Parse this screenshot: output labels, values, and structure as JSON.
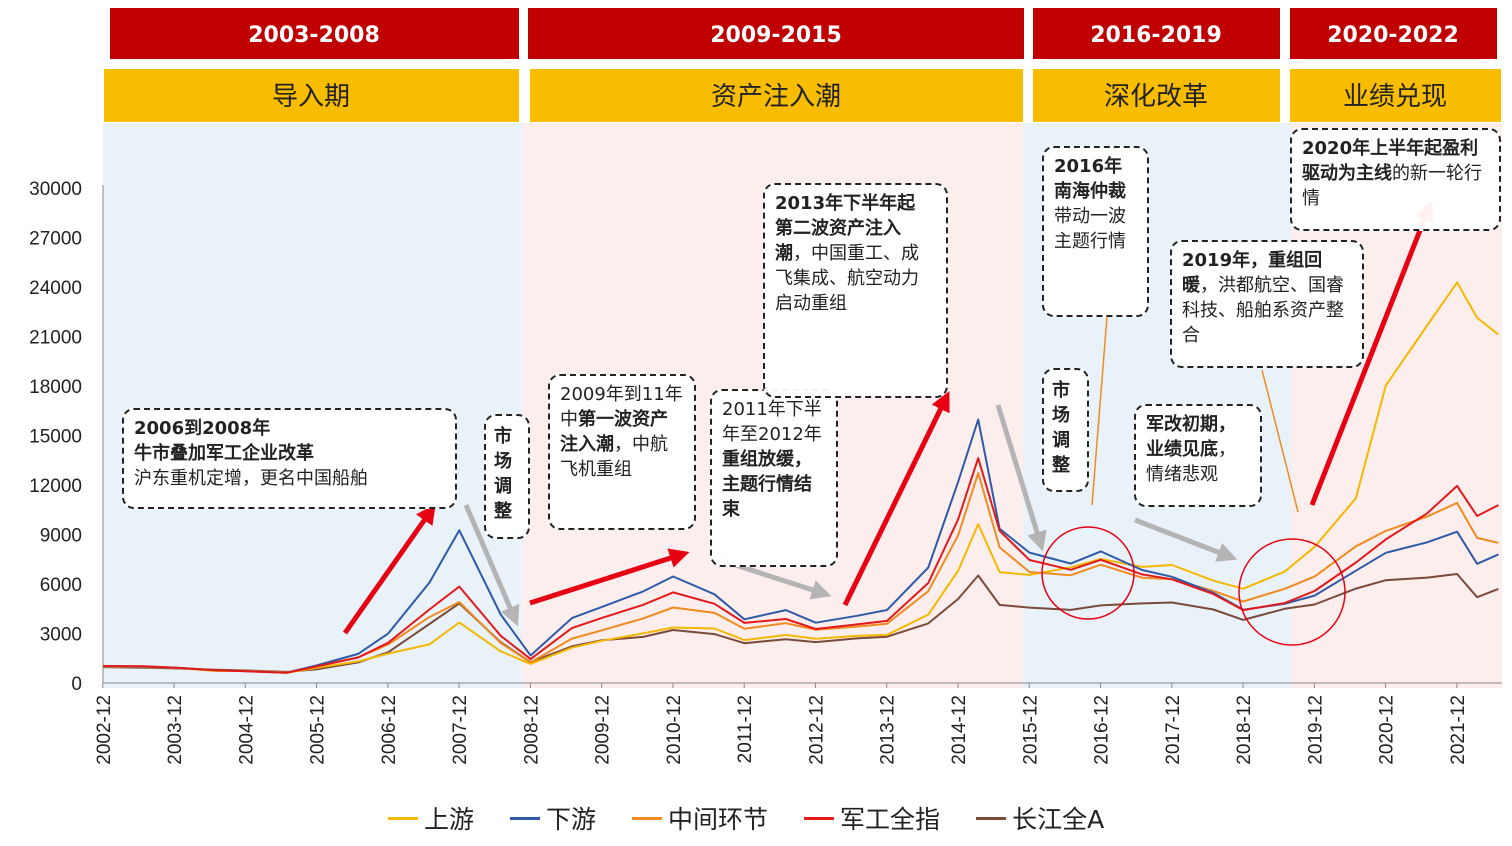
{
  "phases": [
    {
      "years": "2003-2008",
      "name": "导入期"
    },
    {
      "years": "2009-2015",
      "name": "资产注入潮"
    },
    {
      "years": "2016-2019",
      "name": "深化改革"
    },
    {
      "years": "2020-2022",
      "name": "业绩兑现"
    }
  ],
  "annotations": {
    "a2006": {
      "l1": "2006到2008年",
      "l2": "牛市叠加军工企业改革",
      "l3": "沪东重机定增，更名中国船舶"
    },
    "adjust1": {
      "text": "市场调整"
    },
    "a2009": {
      "t1": "2009年到11年中",
      "b1": "第一波资产注入潮",
      "t2": "，中航飞机重组"
    },
    "a2011": {
      "t1": "2011年下半年至2012年",
      "b1": "重组放缓，主题行情结束"
    },
    "a2013": {
      "b1": "2013年下半年起",
      "b2": "第二波资产注入潮",
      "t1": "，中国重工、成飞集成、航空动力启动重组"
    },
    "a2016": {
      "b1": "2016年南海仲裁",
      "t1": "带动一波主题行情"
    },
    "adjust2": {
      "text": "市场调整"
    },
    "a2019": {
      "b1": "2019年，重组回暖",
      "t1": "，洪都航空、国睿科技、船舶系资产整合"
    },
    "a_reform": {
      "b1": "军改初期，业绩见底",
      "t1": "，情绪悲观"
    },
    "a2020": {
      "b1": "2020年上半年起盈利驱动为主线",
      "t1": "的新一轮行情"
    }
  },
  "chart_data": {
    "type": "line",
    "title": "",
    "xlabel": "",
    "ylabel": "",
    "ylim": [
      0,
      30000
    ],
    "yticks": [
      0,
      3000,
      6000,
      9000,
      12000,
      15000,
      18000,
      21000,
      24000,
      27000,
      30000
    ],
    "x_tick_labels": [
      "2002-12",
      "2003-12",
      "2004-12",
      "2005-12",
      "2006-12",
      "2007-12",
      "2008-12",
      "2009-12",
      "2010-12",
      "2011-12",
      "2012-12",
      "2013-12",
      "2014-12",
      "2015-12",
      "2016-12",
      "2017-12",
      "2018-12",
      "2019-12",
      "2020-12",
      "2021-12"
    ],
    "x": [
      2002.92,
      2003.5,
      2003.92,
      2004.5,
      2004.92,
      2005.5,
      2005.92,
      2006.5,
      2006.92,
      2007.5,
      2007.92,
      2008.5,
      2008.92,
      2009.5,
      2009.92,
      2010.5,
      2010.92,
      2011.5,
      2011.92,
      2012.5,
      2012.92,
      2013.5,
      2013.92,
      2014.5,
      2014.92,
      2015.2,
      2015.5,
      2015.92,
      2016.5,
      2016.92,
      2017.5,
      2017.92,
      2018.5,
      2018.92,
      2019.5,
      2019.92,
      2020.5,
      2020.92,
      2021.5,
      2021.92,
      2022.2,
      2022.5
    ],
    "series": [
      {
        "name": "上游",
        "color": "#f5b800",
        "values": [
          1000,
          950,
          900,
          700,
          700,
          600,
          900,
          1300,
          1800,
          2400,
          3800,
          2000,
          1200,
          2200,
          2600,
          3000,
          3300,
          3200,
          2500,
          2800,
          2600,
          2800,
          2900,
          4200,
          7000,
          10000,
          7000,
          6800,
          7200,
          7600,
          7000,
          7000,
          6000,
          5500,
          6500,
          8000,
          11000,
          18000,
          22000,
          25000,
          23000,
          22000
        ]
      },
      {
        "name": "下游",
        "color": "#2e5aa8",
        "values": [
          1000,
          1000,
          950,
          800,
          750,
          650,
          1100,
          1800,
          3000,
          6000,
          9000,
          4000,
          1600,
          3800,
          4500,
          5500,
          6500,
          5500,
          4000,
          4600,
          3800,
          4200,
          4500,
          7000,
          12000,
          15500,
          9000,
          7600,
          7000,
          7800,
          6800,
          6500,
          5600,
          4600,
          5000,
          5500,
          7000,
          8000,
          8500,
          9000,
          7000,
          7500
        ]
      },
      {
        "name": "中间环节",
        "color": "#f08b1f",
        "values": [
          1000,
          980,
          920,
          750,
          720,
          620,
          1000,
          1500,
          2300,
          4000,
          5000,
          2500,
          1300,
          2800,
          3300,
          4000,
          4600,
          4200,
          3200,
          3500,
          3100,
          3300,
          3500,
          5500,
          9000,
          13000,
          8500,
          7000,
          6800,
          7400,
          6500,
          6300,
          5500,
          4800,
          5500,
          6200,
          8000,
          9000,
          10000,
          11000,
          9000,
          8800
        ]
      },
      {
        "name": "军工全指",
        "color": "#e31a1c",
        "values": [
          1000,
          1000,
          930,
          780,
          730,
          640,
          1050,
          1600,
          2500,
          4500,
          5800,
          2800,
          1400,
          3200,
          3800,
          4600,
          5400,
          4800,
          3700,
          4000,
          3400,
          3700,
          3900,
          6200,
          10000,
          13500,
          9000,
          7200,
          6600,
          7200,
          6400,
          6200,
          5400,
          4500,
          5000,
          5800,
          7600,
          9000,
          10500,
          12000,
          10000,
          10500
        ]
      },
      {
        "name": "长江全A",
        "color": "#7a4a3a",
        "values": [
          1000,
          950,
          900,
          800,
          750,
          650,
          800,
          1200,
          1800,
          3500,
          4800,
          2500,
          1300,
          2300,
          2700,
          2900,
          3300,
          3000,
          2400,
          2600,
          2400,
          2600,
          2700,
          3500,
          5000,
          6500,
          4800,
          4700,
          4600,
          4900,
          5000,
          5000,
          4500,
          3800,
          4400,
          4600,
          5500,
          6000,
          6200,
          6500,
          5200,
          5800
        ]
      }
    ]
  }
}
